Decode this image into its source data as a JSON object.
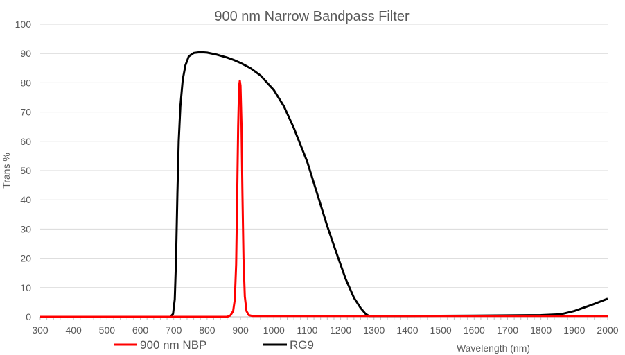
{
  "chart_data": {
    "type": "line",
    "title": "900 nm Narrow Bandpass Filter",
    "xlabel": "Wavelength (nm)",
    "ylabel": "Trans %",
    "xlim": [
      300,
      2000
    ],
    "ylim": [
      0,
      100
    ],
    "xticks": [
      300,
      400,
      500,
      600,
      700,
      800,
      900,
      1000,
      1100,
      1200,
      1300,
      1400,
      1500,
      1600,
      1700,
      1800,
      1900,
      2000
    ],
    "yticks": [
      0,
      10,
      20,
      30,
      40,
      50,
      60,
      70,
      80,
      90,
      100
    ],
    "grid": true,
    "legend": "bottom",
    "series": [
      {
        "name": "900 nm NBP",
        "color": "#ff0000",
        "points": [
          [
            300,
            0
          ],
          [
            860,
            0
          ],
          [
            870,
            0.5
          ],
          [
            878,
            2
          ],
          [
            883,
            6
          ],
          [
            887,
            18
          ],
          [
            890,
            40
          ],
          [
            893,
            65
          ],
          [
            896,
            79
          ],
          [
            898,
            80.7
          ],
          [
            900,
            79
          ],
          [
            903,
            66
          ],
          [
            906,
            42
          ],
          [
            909,
            20
          ],
          [
            913,
            7
          ],
          [
            918,
            2
          ],
          [
            925,
            0.6
          ],
          [
            935,
            0.3
          ],
          [
            2000,
            0.3
          ]
        ]
      },
      {
        "name": "RG9",
        "color": "#000000",
        "points": [
          [
            300,
            0
          ],
          [
            690,
            0
          ],
          [
            698,
            1
          ],
          [
            703,
            6
          ],
          [
            707,
            20
          ],
          [
            711,
            42
          ],
          [
            715,
            60
          ],
          [
            720,
            72
          ],
          [
            727,
            81
          ],
          [
            735,
            86
          ],
          [
            745,
            89
          ],
          [
            760,
            90.2
          ],
          [
            780,
            90.5
          ],
          [
            800,
            90.3
          ],
          [
            830,
            89.6
          ],
          [
            860,
            88.6
          ],
          [
            880,
            87.8
          ],
          [
            900,
            86.8
          ],
          [
            930,
            85
          ],
          [
            960,
            82.5
          ],
          [
            1000,
            77.5
          ],
          [
            1030,
            72
          ],
          [
            1060,
            64.5
          ],
          [
            1100,
            53
          ],
          [
            1130,
            42
          ],
          [
            1160,
            31
          ],
          [
            1190,
            21
          ],
          [
            1215,
            13
          ],
          [
            1240,
            6.5
          ],
          [
            1260,
            3
          ],
          [
            1275,
            1
          ],
          [
            1285,
            0.3
          ],
          [
            1400,
            0.3
          ],
          [
            1600,
            0.4
          ],
          [
            1800,
            0.6
          ],
          [
            1860,
            0.9
          ],
          [
            1900,
            2
          ],
          [
            1950,
            4
          ],
          [
            2000,
            6.2
          ]
        ]
      }
    ]
  }
}
